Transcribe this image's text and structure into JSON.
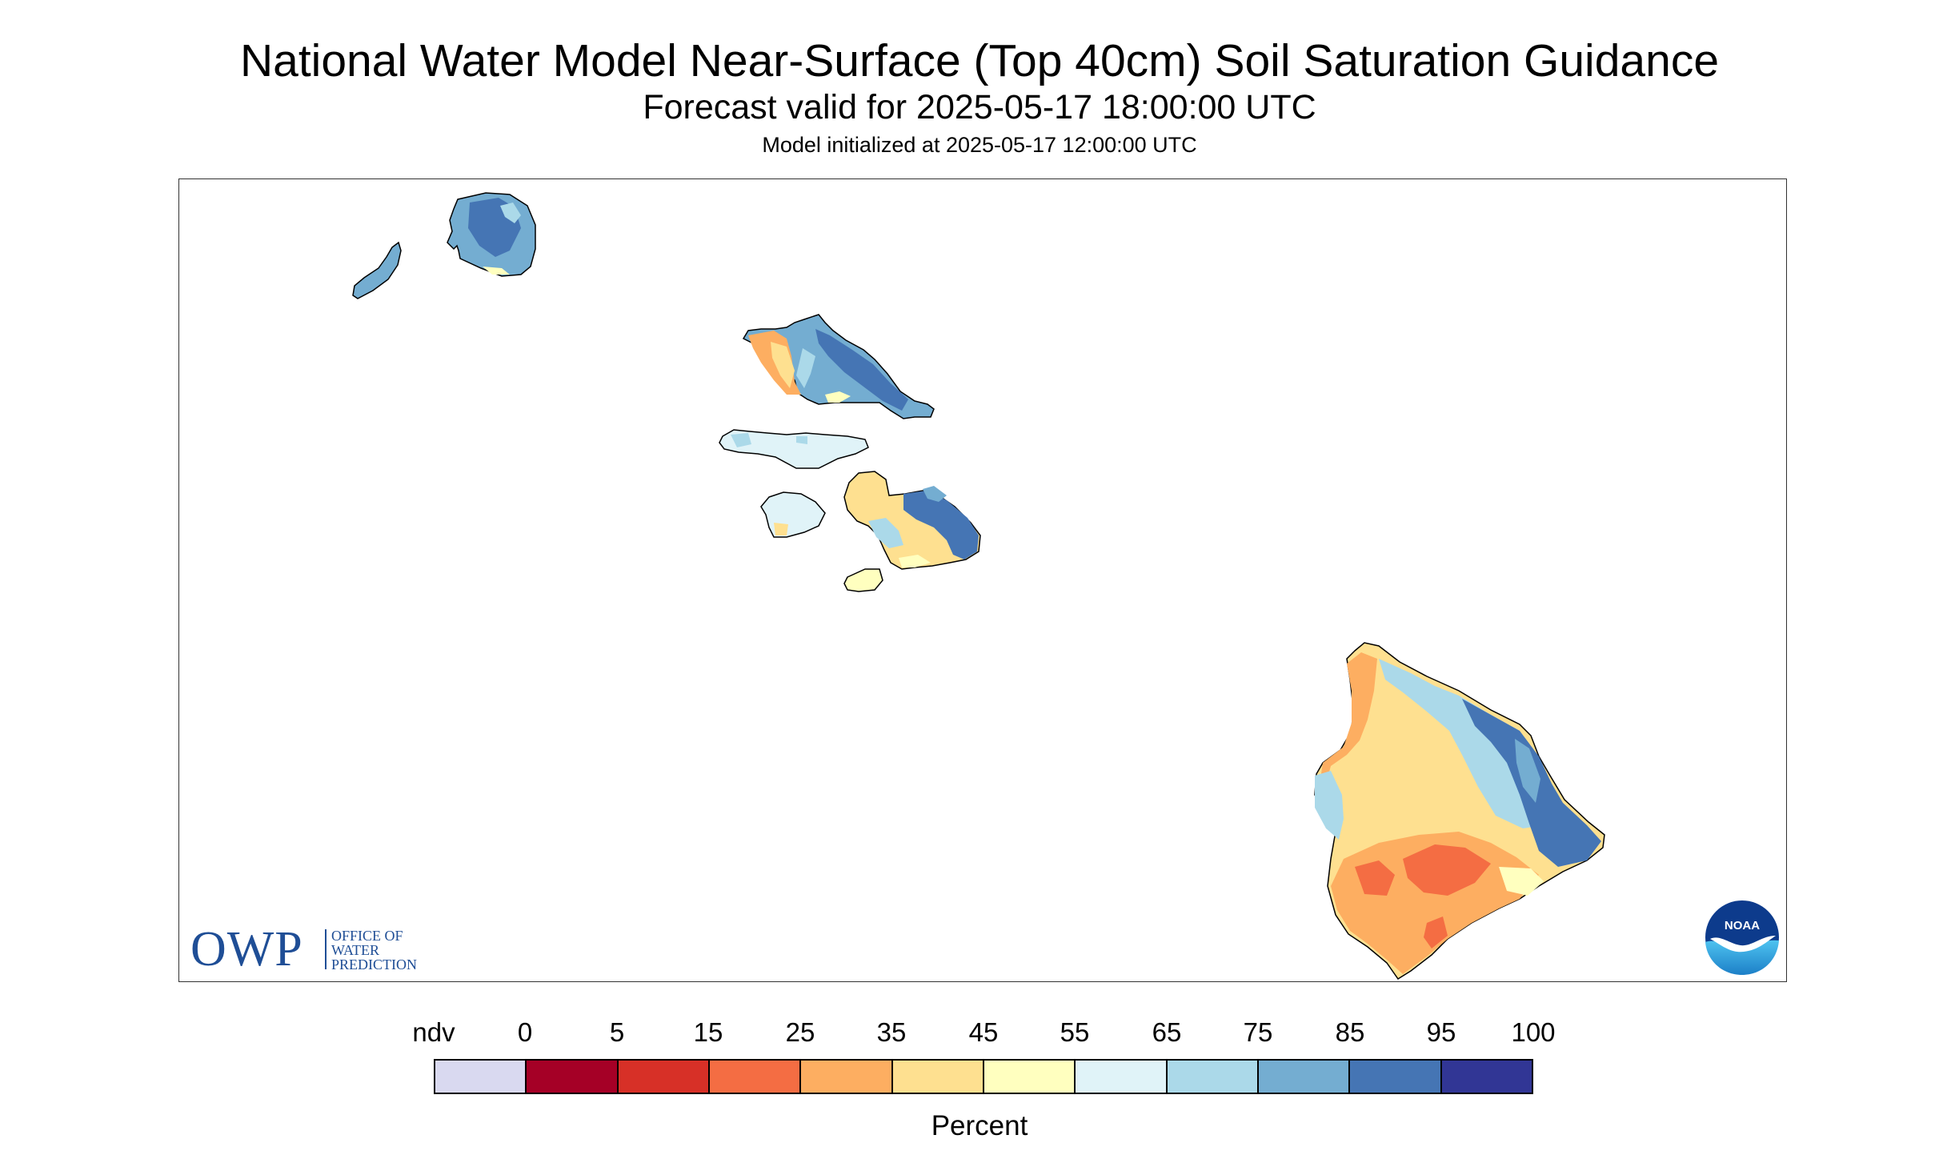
{
  "header": {
    "title": "National Water Model Near-Surface (Top 40cm) Soil Saturation Guidance",
    "subtitle": "Forecast valid for 2025-05-17 18:00:00 UTC",
    "init": "Model initialized at 2025-05-17 12:00:00 UTC"
  },
  "logos": {
    "owp_letters": "OWP",
    "owp_line1": "OFFICE OF",
    "owp_line2": "WATER",
    "owp_line3": "PREDICTION",
    "noaa": "NOAA"
  },
  "legend": {
    "units": "Percent",
    "labels": [
      "ndv",
      "0",
      "5",
      "15",
      "25",
      "35",
      "45",
      "55",
      "65",
      "75",
      "85",
      "95",
      "100"
    ],
    "colors": [
      "#d9d9f0",
      "#a50026",
      "#d73027",
      "#f46d43",
      "#fdae61",
      "#fee090",
      "#ffffbf",
      "#e0f3f8",
      "#abd9e9",
      "#74add1",
      "#4575b4",
      "#313695"
    ]
  },
  "colors": {
    "outline": "#000000",
    "owp_blue": "#1f4e96",
    "noaa_dark": "#0d3b8c",
    "noaa_light": "#2a9fd8"
  }
}
